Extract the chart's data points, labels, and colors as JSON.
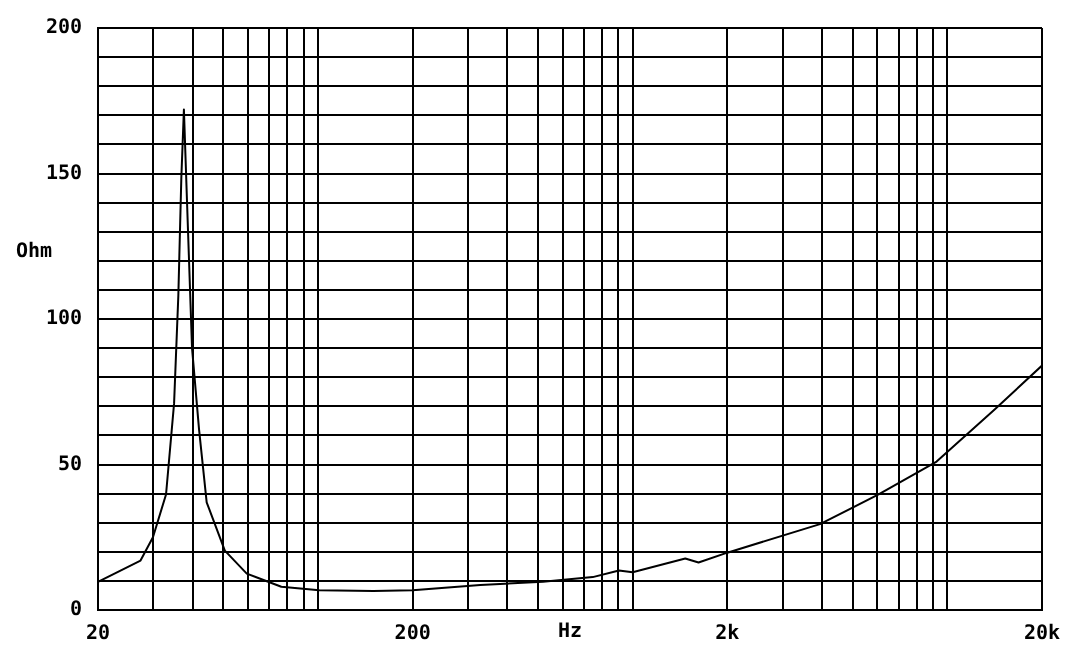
{
  "chart_data": {
    "type": "line",
    "xlabel": "Hz",
    "ylabel": "Ohm",
    "log": "x",
    "grid": true,
    "marker": "none",
    "line_style": "solid",
    "legend": false,
    "xlim": [
      20,
      20000
    ],
    "ylim": [
      0,
      200
    ],
    "xticks": [
      20,
      {
        "value": 30,
        "label": null
      },
      {
        "value": 40,
        "label": null
      },
      {
        "value": 50,
        "label": null
      },
      {
        "value": 60,
        "label": null
      },
      {
        "value": 70,
        "label": null
      },
      {
        "value": 80,
        "label": null
      },
      {
        "value": 90,
        "label": null
      },
      {
        "value": 100,
        "label": null
      },
      200,
      {
        "value": 300,
        "label": null
      },
      {
        "value": 400,
        "label": null
      },
      {
        "value": 500,
        "label": null
      },
      {
        "value": 600,
        "label": null
      },
      {
        "value": 700,
        "label": null
      },
      {
        "value": 800,
        "label": null
      },
      {
        "value": 900,
        "label": null
      },
      {
        "value": 1000,
        "label": null
      },
      {
        "value": 2000,
        "label": "2k"
      },
      {
        "value": 3000,
        "label": null
      },
      {
        "value": 4000,
        "label": null
      },
      {
        "value": 5000,
        "label": null
      },
      {
        "value": 6000,
        "label": null
      },
      {
        "value": 7000,
        "label": null
      },
      {
        "value": 8000,
        "label": null
      },
      {
        "value": 9000,
        "label": null
      },
      {
        "value": 10000,
        "label": null
      },
      {
        "value": 20000,
        "label": "20k"
      }
    ],
    "yticks": [
      0,
      {
        "value": 10,
        "label": null
      },
      {
        "value": 20,
        "label": null
      },
      {
        "value": 30,
        "label": null
      },
      {
        "value": 40,
        "label": null
      },
      50,
      {
        "value": 60,
        "label": null
      },
      {
        "value": 70,
        "label": null
      },
      {
        "value": 80,
        "label": null
      },
      {
        "value": 90,
        "label": null
      },
      100,
      {
        "value": 110,
        "label": null
      },
      {
        "value": 120,
        "label": null
      },
      {
        "value": 130,
        "label": null
      },
      {
        "value": 140,
        "label": null
      },
      150,
      {
        "value": 160,
        "label": null
      },
      {
        "value": 170,
        "label": null
      },
      {
        "value": 180,
        "label": null
      },
      {
        "value": 190,
        "label": null
      },
      200
    ],
    "series": [
      {
        "color": "#000000",
        "x": [
          20,
          27.3,
          29.9,
          32.9,
          34.9,
          36,
          36.8,
          37.5,
          38.4,
          39.8,
          41.9,
          44.3,
          50.6,
          59.4,
          76.5,
          101,
          150,
          200,
          328,
          519,
          747,
          905,
          1000,
          1470,
          1620,
          2000,
          3940,
          6050,
          9250,
          14170,
          20000
        ],
        "values": [
          9.7,
          17,
          25,
          39.7,
          71,
          108,
          148.5,
          172,
          139,
          90,
          62,
          37,
          20.4,
          12.5,
          8,
          6.8,
          6.5,
          6.8,
          8.6,
          9.7,
          11.3,
          13.6,
          13,
          17.7,
          16.3,
          19.7,
          29.5,
          39.7,
          51,
          69,
          84
        ]
      }
    ]
  }
}
